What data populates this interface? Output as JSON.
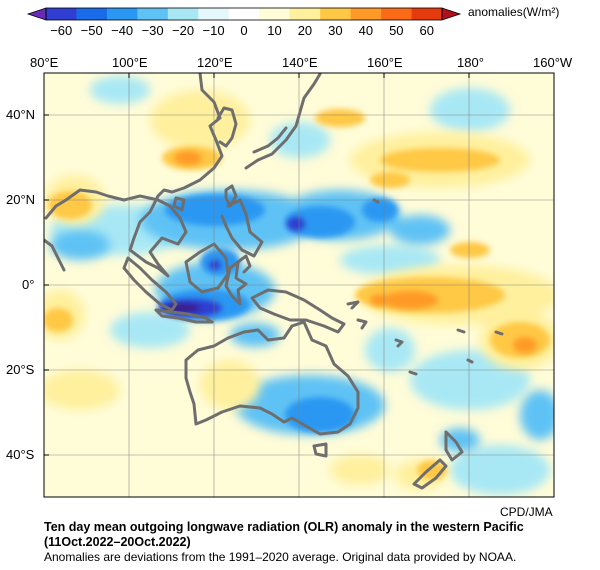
{
  "colorbar": {
    "ticks": [
      "−60",
      "−50",
      "−40",
      "−30",
      "−20",
      "−10",
      "0",
      "10",
      "20",
      "30",
      "40",
      "50",
      "60"
    ],
    "colors": [
      "#2f3ed0",
      "#1a6bea",
      "#2a98f2",
      "#5fc2f5",
      "#a8e8f5",
      "#e4f8fb",
      "#ffffff",
      "#fffcd8",
      "#fff09e",
      "#ffc844",
      "#ff9a28",
      "#fb6a16",
      "#e43a0e"
    ],
    "units_label": "anomalies(W/m²)"
  },
  "map": {
    "lon_labels": [
      "80°E",
      "100°E",
      "120°E",
      "140°E",
      "160°E",
      "180°",
      "160°W"
    ],
    "lat_labels": [
      "40°N",
      "20°N",
      "0°",
      "20°S",
      "40°S"
    ]
  },
  "caption": {
    "credit": "CPD/JMA",
    "title": "Ten day mean outgoing longwave radiation (OLR) anomaly in the western Pacific",
    "period": "(11Oct.2022–20Oct.2022)",
    "note": "Anomalies are deviations from the 1991–2020 average. Original data provided by NOAA."
  }
}
